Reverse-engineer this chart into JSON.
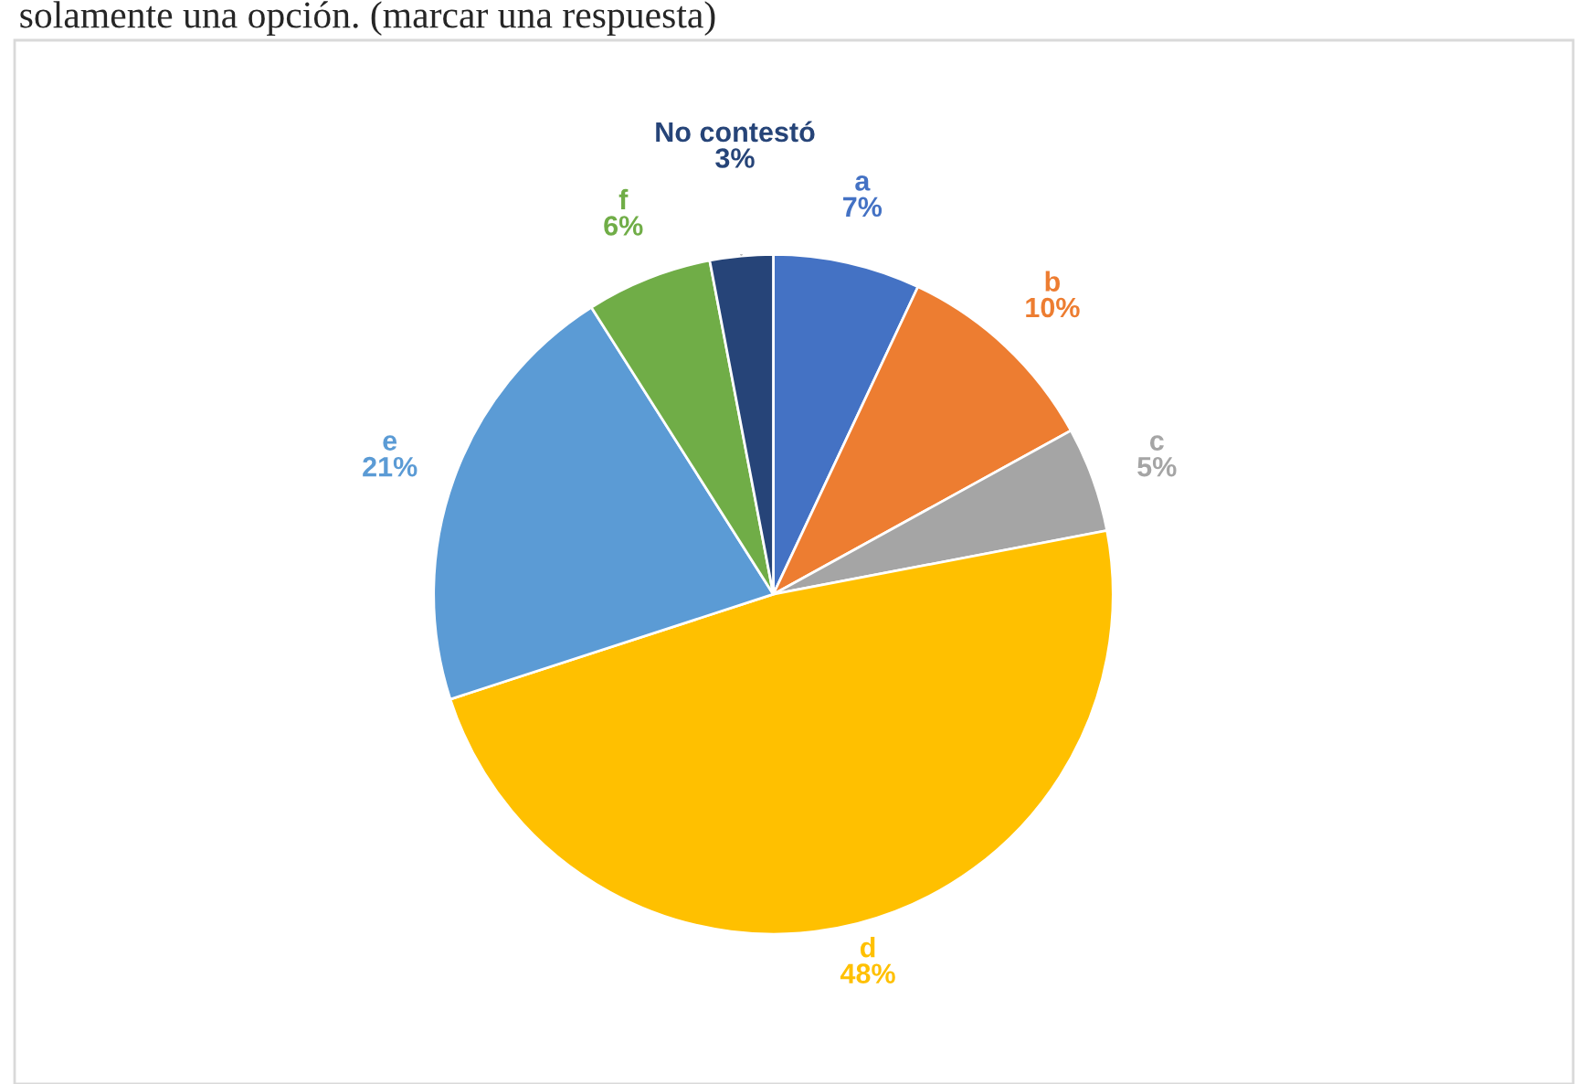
{
  "chart_data": {
    "type": "pie",
    "title": "solamente una opción. (marcar una respuesta)",
    "categories": [
      "a",
      "b",
      "c",
      "d",
      "e",
      "f",
      "No contestó"
    ],
    "values": [
      7,
      10,
      5,
      48,
      21,
      6,
      3
    ],
    "value_labels": [
      "7%",
      "10%",
      "5%",
      "48%",
      "21%",
      "6%",
      "3%"
    ],
    "colors": [
      "#4472c4",
      "#ed7d31",
      "#a5a5a5",
      "#ffc000",
      "#5b9bd5",
      "#70ad47",
      "#264478"
    ],
    "legend": false
  }
}
